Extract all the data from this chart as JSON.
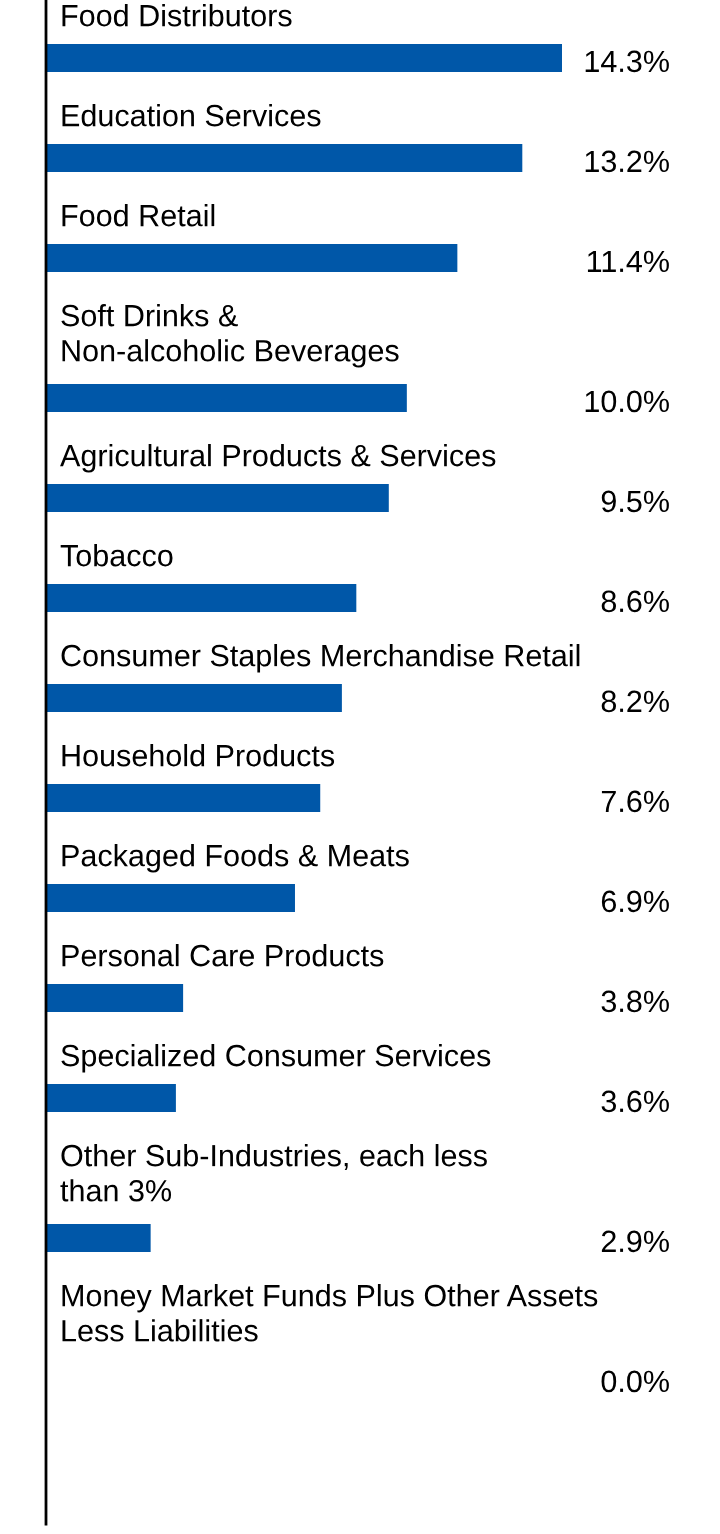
{
  "chart_data": {
    "type": "bar",
    "orientation": "horizontal",
    "categories": [
      "Food Distributors",
      "Education Services",
      "Food Retail",
      "Soft Drinks &\nNon-alcoholic Beverages",
      "Agricultural Products & Services",
      "Tobacco",
      "Consumer Staples Merchandise Retail",
      "Household Products",
      "Packaged Foods & Meats",
      "Personal Care Products",
      "Specialized Consumer Services",
      "Other Sub-Industries, each less\nthan 3%",
      "Money Market Funds Plus Other Assets\nLess Liabilities"
    ],
    "values": [
      14.3,
      13.2,
      11.4,
      10.0,
      9.5,
      8.6,
      8.2,
      7.6,
      6.9,
      3.8,
      3.6,
      2.9,
      0.0
    ],
    "value_labels": [
      "14.3%",
      "13.2%",
      "11.4%",
      "10.0%",
      "9.5%",
      "8.6%",
      "8.2%",
      "7.6%",
      "6.9%",
      "3.8%",
      "3.6%",
      "2.9%",
      "0.0%"
    ],
    "color": "#0057a8"
  }
}
